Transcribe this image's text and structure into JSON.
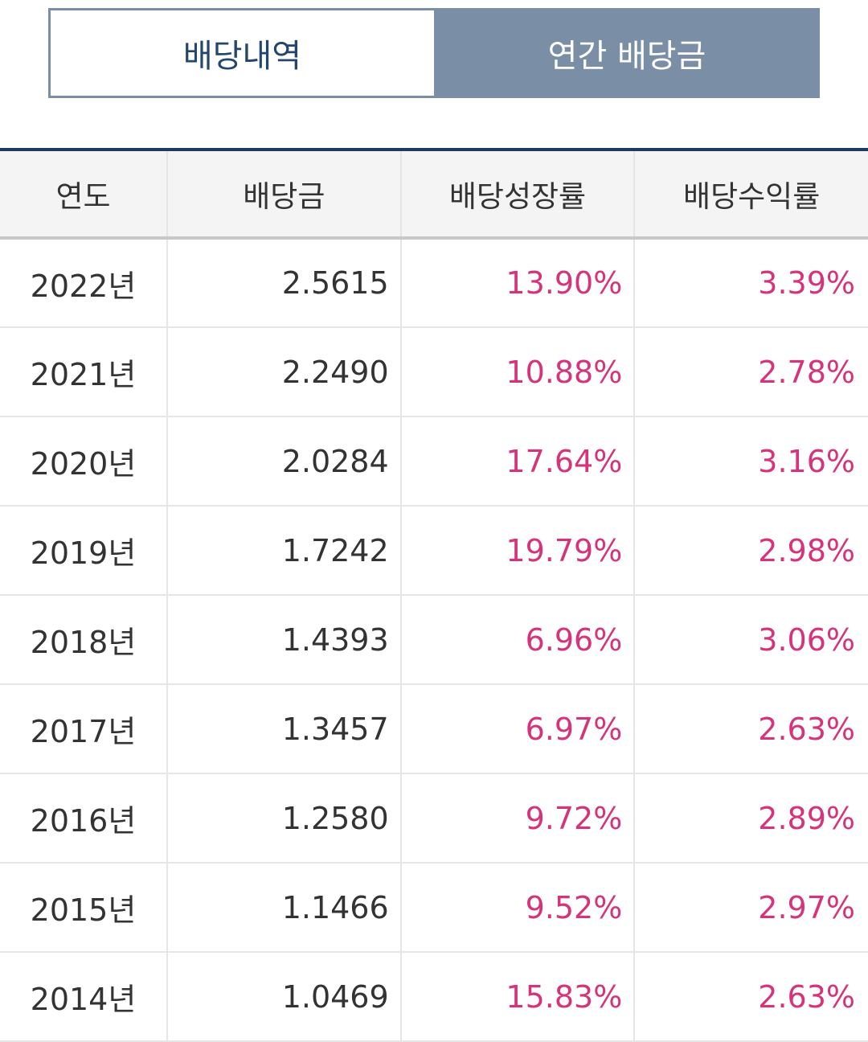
{
  "tabs": {
    "history_label": "배당내역",
    "annual_label": "연간 배당금"
  },
  "table": {
    "headers": {
      "year": "연도",
      "amount": "배당금",
      "growth": "배당성장률",
      "yield": "배당수익률"
    },
    "rows": [
      {
        "year": "2022년",
        "amount": "2.5615",
        "growth": "13.90%",
        "yield": "3.39%"
      },
      {
        "year": "2021년",
        "amount": "2.2490",
        "growth": "10.88%",
        "yield": "2.78%"
      },
      {
        "year": "2020년",
        "amount": "2.0284",
        "growth": "17.64%",
        "yield": "3.16%"
      },
      {
        "year": "2019년",
        "amount": "1.7242",
        "growth": "19.79%",
        "yield": "2.98%"
      },
      {
        "year": "2018년",
        "amount": "1.4393",
        "growth": "6.96%",
        "yield": "3.06%"
      },
      {
        "year": "2017년",
        "amount": "1.3457",
        "growth": "6.97%",
        "yield": "2.63%"
      },
      {
        "year": "2016년",
        "amount": "1.2580",
        "growth": "9.72%",
        "yield": "2.89%"
      },
      {
        "year": "2015년",
        "amount": "1.1466",
        "growth": "9.52%",
        "yield": "2.97%"
      },
      {
        "year": "2014년",
        "amount": "1.0469",
        "growth": "15.83%",
        "yield": "2.63%"
      }
    ]
  },
  "colors": {
    "tab_active_bg": "#7a8fa6",
    "tab_inactive_text": "#23466e",
    "header_top_border": "#1f3a60",
    "percent_text": "#d6337a"
  }
}
